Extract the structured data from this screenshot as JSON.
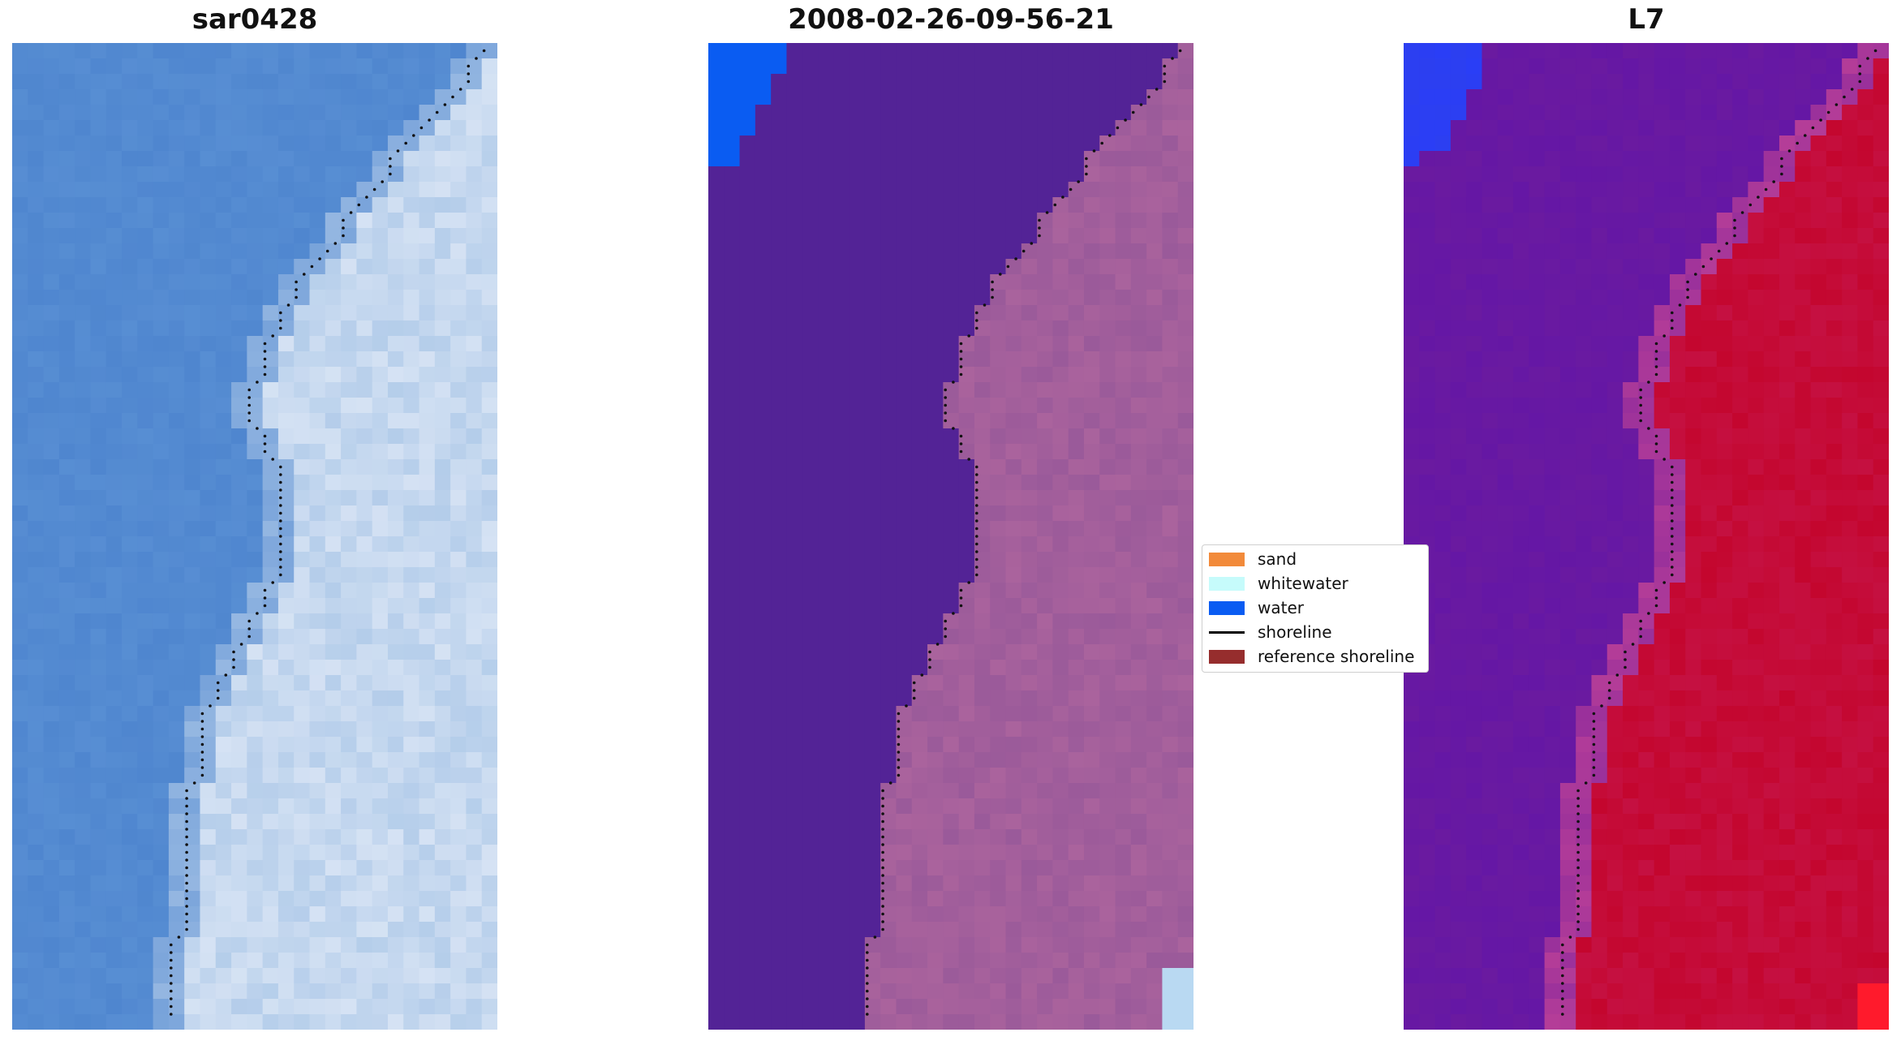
{
  "panels": [
    {
      "title": "sar0428",
      "kind": "rgb"
    },
    {
      "title": "2008-02-26-09-56-21",
      "kind": "classified"
    },
    {
      "title": "L7",
      "kind": "false-color"
    }
  ],
  "legend": {
    "items": [
      {
        "label": "sand",
        "color": "#f28a3a"
      },
      {
        "label": "whitewater",
        "color": "#c6fbfb"
      },
      {
        "label": "water",
        "color": "#0a5cf2"
      },
      {
        "label": "shoreline",
        "color": "#000000"
      },
      {
        "label": "reference shoreline",
        "color": "#962d2d"
      }
    ]
  },
  "colors": {
    "rgb_water": "#4f86cf",
    "rgb_land": "#b4cdea",
    "classified_water": "#532396",
    "classified_land": "#9a5a9a",
    "classified_water_class": "#0a5cf2",
    "classified_whitewater": "#b9d9f2",
    "fc_water": "#6a1aa0",
    "fc_land": "#c4062e",
    "fc_bright_water": "#2c3ff0",
    "fc_bright_land": "#ff1a2c"
  }
}
